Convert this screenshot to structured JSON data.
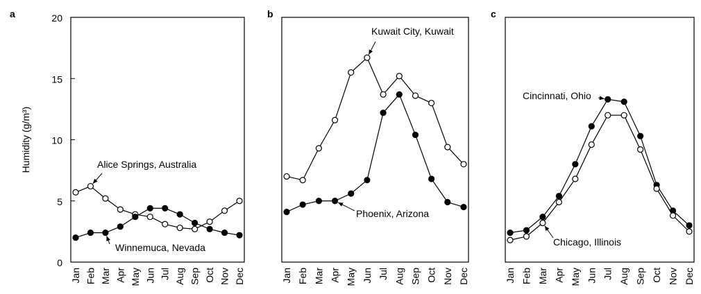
{
  "chart_data": [
    {
      "type": "line",
      "panel": "a",
      "y_label": "Humidity (g/m³)",
      "categories": [
        "Jan",
        "Feb",
        "Mar",
        "Apr",
        "May",
        "Jun",
        "Jul",
        "Aug",
        "Sep",
        "Oct",
        "Nov",
        "Dec"
      ],
      "ylim": [
        0,
        20
      ],
      "yticks": [
        0,
        5,
        10,
        15,
        20
      ],
      "series": [
        {
          "name": "Alice Springs, Australia",
          "color": "#000000",
          "marker": "open",
          "values": [
            5.7,
            6.2,
            5.2,
            4.3,
            3.9,
            3.7,
            3.1,
            2.8,
            2.7,
            3.3,
            4.2,
            5.0
          ]
        },
        {
          "name": "Winnemuca, Nevada",
          "color": "#000000",
          "marker": "filled",
          "values": [
            2.0,
            2.4,
            2.4,
            2.9,
            3.7,
            4.4,
            4.4,
            3.9,
            3.2,
            2.7,
            2.4,
            2.2
          ]
        }
      ]
    },
    {
      "type": "line",
      "panel": "b",
      "categories": [
        "Jan",
        "Feb",
        "Mar",
        "Apr",
        "May",
        "Jun",
        "Jul",
        "Aug",
        "Sep",
        "Oct",
        "Nov",
        "Dec"
      ],
      "ylim": [
        0,
        20
      ],
      "series": [
        {
          "name": "Kuwait City, Kuwait",
          "color": "#000000",
          "marker": "open",
          "values": [
            7.0,
            6.7,
            9.3,
            11.6,
            15.5,
            16.7,
            13.7,
            15.2,
            13.6,
            13.0,
            9.4,
            8.0
          ]
        },
        {
          "name": "Phoenix, Arizona",
          "color": "#000000",
          "marker": "filled",
          "values": [
            4.1,
            4.7,
            5.0,
            5.0,
            5.6,
            6.7,
            12.2,
            13.7,
            10.4,
            6.8,
            4.9,
            4.5
          ]
        }
      ]
    },
    {
      "type": "line",
      "panel": "c",
      "categories": [
        "Jan",
        "Feb",
        "Mar",
        "Apr",
        "May",
        "Jun",
        "Jul",
        "Aug",
        "Sep",
        "Oct",
        "Nov",
        "Dec"
      ],
      "ylim": [
        0,
        20
      ],
      "series": [
        {
          "name": "Cincinnati, Ohio",
          "color": "#000000",
          "marker": "filled",
          "values": [
            2.4,
            2.6,
            3.7,
            5.4,
            8.0,
            11.1,
            13.3,
            13.1,
            10.3,
            6.3,
            4.2,
            3.0
          ]
        },
        {
          "name": "Chicago, Illinois",
          "color": "#000000",
          "marker": "open",
          "values": [
            1.8,
            2.1,
            3.2,
            4.9,
            6.8,
            9.6,
            12.0,
            12.0,
            9.2,
            6.0,
            3.8,
            2.5
          ]
        }
      ]
    }
  ]
}
